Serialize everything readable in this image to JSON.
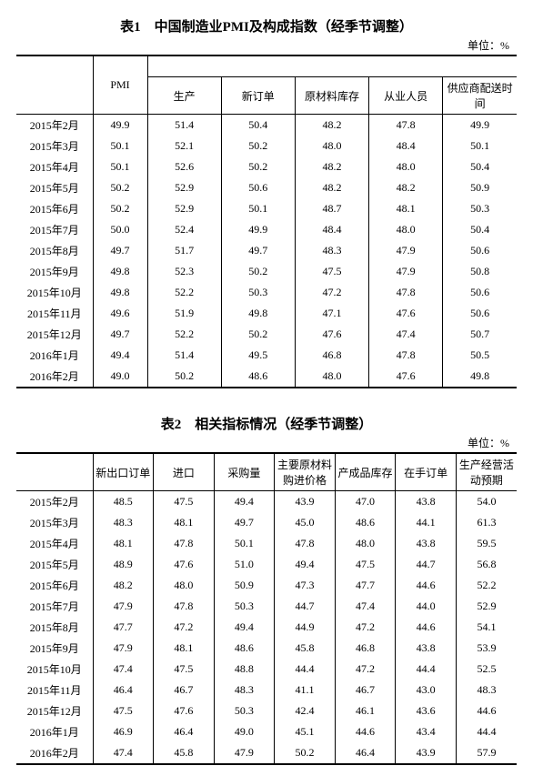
{
  "unit_label": "单位：%",
  "table1": {
    "title": "表1　中国制造业PMI及构成指数（经季节调整）",
    "col0": "PMI",
    "subcols": [
      "生产",
      "新订单",
      "原材料库存",
      "从业人员",
      "供应商配送时间"
    ],
    "rows": [
      {
        "label": "2015年2月",
        "vals": [
          "49.9",
          "51.4",
          "50.4",
          "48.2",
          "47.8",
          "49.9"
        ]
      },
      {
        "label": "2015年3月",
        "vals": [
          "50.1",
          "52.1",
          "50.2",
          "48.0",
          "48.4",
          "50.1"
        ]
      },
      {
        "label": "2015年4月",
        "vals": [
          "50.1",
          "52.6",
          "50.2",
          "48.2",
          "48.0",
          "50.4"
        ]
      },
      {
        "label": "2015年5月",
        "vals": [
          "50.2",
          "52.9",
          "50.6",
          "48.2",
          "48.2",
          "50.9"
        ]
      },
      {
        "label": "2015年6月",
        "vals": [
          "50.2",
          "52.9",
          "50.1",
          "48.7",
          "48.1",
          "50.3"
        ]
      },
      {
        "label": "2015年7月",
        "vals": [
          "50.0",
          "52.4",
          "49.9",
          "48.4",
          "48.0",
          "50.4"
        ]
      },
      {
        "label": "2015年8月",
        "vals": [
          "49.7",
          "51.7",
          "49.7",
          "48.3",
          "47.9",
          "50.6"
        ]
      },
      {
        "label": "2015年9月",
        "vals": [
          "49.8",
          "52.3",
          "50.2",
          "47.5",
          "47.9",
          "50.8"
        ]
      },
      {
        "label": "2015年10月",
        "vals": [
          "49.8",
          "52.2",
          "50.3",
          "47.2",
          "47.8",
          "50.6"
        ]
      },
      {
        "label": "2015年11月",
        "vals": [
          "49.6",
          "51.9",
          "49.8",
          "47.1",
          "47.6",
          "50.6"
        ]
      },
      {
        "label": "2015年12月",
        "vals": [
          "49.7",
          "52.2",
          "50.2",
          "47.6",
          "47.4",
          "50.7"
        ]
      },
      {
        "label": "2016年1月",
        "vals": [
          "49.4",
          "51.4",
          "49.5",
          "46.8",
          "47.8",
          "50.5"
        ]
      },
      {
        "label": "2016年2月",
        "vals": [
          "49.0",
          "50.2",
          "48.6",
          "48.0",
          "47.6",
          "49.8"
        ]
      }
    ]
  },
  "table2": {
    "title": "表2　相关指标情况（经季节调整）",
    "cols": [
      "新出口订单",
      "进口",
      "采购量",
      "主要原材料购进价格",
      "产成品库存",
      "在手订单",
      "生产经营活动预期"
    ],
    "rows": [
      {
        "label": "2015年2月",
        "vals": [
          "48.5",
          "47.5",
          "49.4",
          "43.9",
          "47.0",
          "43.8",
          "54.0"
        ]
      },
      {
        "label": "2015年3月",
        "vals": [
          "48.3",
          "48.1",
          "49.7",
          "45.0",
          "48.6",
          "44.1",
          "61.3"
        ]
      },
      {
        "label": "2015年4月",
        "vals": [
          "48.1",
          "47.8",
          "50.1",
          "47.8",
          "48.0",
          "43.8",
          "59.5"
        ]
      },
      {
        "label": "2015年5月",
        "vals": [
          "48.9",
          "47.6",
          "51.0",
          "49.4",
          "47.5",
          "44.7",
          "56.8"
        ]
      },
      {
        "label": "2015年6月",
        "vals": [
          "48.2",
          "48.0",
          "50.9",
          "47.3",
          "47.7",
          "44.6",
          "52.2"
        ]
      },
      {
        "label": "2015年7月",
        "vals": [
          "47.9",
          "47.8",
          "50.3",
          "44.7",
          "47.4",
          "44.0",
          "52.9"
        ]
      },
      {
        "label": "2015年8月",
        "vals": [
          "47.7",
          "47.2",
          "49.4",
          "44.9",
          "47.2",
          "44.6",
          "54.1"
        ]
      },
      {
        "label": "2015年9月",
        "vals": [
          "47.9",
          "48.1",
          "48.6",
          "45.8",
          "46.8",
          "43.8",
          "53.9"
        ]
      },
      {
        "label": "2015年10月",
        "vals": [
          "47.4",
          "47.5",
          "48.8",
          "44.4",
          "47.2",
          "44.4",
          "52.5"
        ]
      },
      {
        "label": "2015年11月",
        "vals": [
          "46.4",
          "46.7",
          "48.3",
          "41.1",
          "46.7",
          "43.0",
          "48.3"
        ]
      },
      {
        "label": "2015年12月",
        "vals": [
          "47.5",
          "47.6",
          "50.3",
          "42.4",
          "46.1",
          "43.6",
          "44.6"
        ]
      },
      {
        "label": "2016年1月",
        "vals": [
          "46.9",
          "46.4",
          "49.0",
          "45.1",
          "44.6",
          "43.4",
          "44.4"
        ]
      },
      {
        "label": "2016年2月",
        "vals": [
          "47.4",
          "45.8",
          "47.9",
          "50.2",
          "46.4",
          "43.9",
          "57.9"
        ]
      }
    ]
  }
}
